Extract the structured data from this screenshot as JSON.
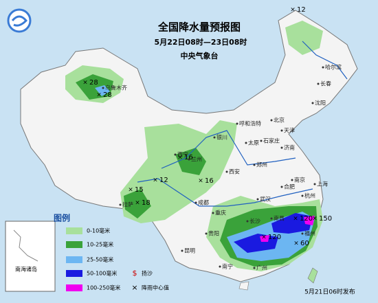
{
  "header": {
    "title": "全国降水量预报图",
    "time": "5月22日08时—23日08时",
    "issuer": "中央气象台"
  },
  "legend": {
    "title": "图例",
    "items": [
      {
        "label": "0-10毫米",
        "color": "#a8e09c"
      },
      {
        "label": "10-25毫米",
        "color": "#3aa23a"
      },
      {
        "label": "25-50毫米",
        "color": "#6cb6f2"
      },
      {
        "label": "50-100毫米",
        "color": "#1a1ae0"
      },
      {
        "label": "100-250毫米",
        "color": "#f000f0"
      }
    ],
    "symbols": [
      "扬沙",
      "降雨中心值"
    ]
  },
  "inset": {
    "label": "南海诸岛"
  },
  "footer": "5月21日06时发布",
  "centers": [
    12,
    28,
    28,
    12,
    15,
    18,
    16,
    16,
    120,
    150,
    120,
    60
  ],
  "cities": [
    "乌鲁木齐",
    "哈尔滨",
    "长春",
    "沈阳",
    "北京",
    "天津",
    "石家庄",
    "太原",
    "济南",
    "呼和浩特",
    "银川",
    "兰州",
    "西宁",
    "西安",
    "郑州",
    "合肥",
    "南京",
    "上海",
    "武汉",
    "长沙",
    "成都",
    "重庆",
    "贵阳",
    "昆明",
    "南宁",
    "广州",
    "拉萨",
    "杭州",
    "福州",
    "南昌"
  ]
}
